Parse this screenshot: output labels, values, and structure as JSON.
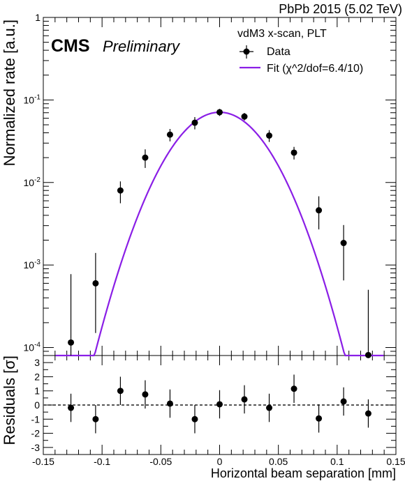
{
  "header": {
    "energy_label": "PbPb 2015 (5.02 TeV)",
    "cms_label": "CMS",
    "prelim_label": "Preliminary"
  },
  "legend": {
    "header": "vdM3 x-scan,  PLT",
    "data_label": "Data",
    "fit_label": "Fit (χ^2/dof=6.4/10)"
  },
  "colors": {
    "fit": "#8a1ee6",
    "data": "#000000",
    "zero_line": "#555555"
  },
  "chart_data": [
    {
      "type": "scatter",
      "title": "",
      "xlabel": "Horizontal beam separation [mm]",
      "ylabel": "Normalized rate [a.u.]",
      "yscale": "log",
      "xlim": [
        -0.15,
        0.15
      ],
      "ylim": [
        8e-05,
        1
      ],
      "x_ticks": [
        "-0.15",
        "-0.1",
        "-0.05",
        "0",
        "0.05",
        "0.1",
        "0.15"
      ],
      "y_ticks": [
        "10^-4",
        "10^-3",
        "10^-2",
        "10^-1",
        "1"
      ],
      "series": [
        {
          "name": "Data",
          "x": [
            -0.1265,
            -0.1055,
            -0.0844,
            -0.0633,
            -0.0422,
            -0.0211,
            0.0,
            0.0211,
            0.0422,
            0.0633,
            0.0844,
            0.1055,
            0.1265
          ],
          "y": [
            0.000115,
            0.0006,
            0.008,
            0.02,
            0.038,
            0.053,
            0.071,
            0.063,
            0.037,
            0.023,
            0.0046,
            0.00185,
            8.1e-05
          ],
          "y_err_low": [
            3.5e-05,
            0.00045,
            0.0024,
            0.005,
            0.0065,
            0.009,
            0.007,
            0.0065,
            0.006,
            0.004,
            0.0019,
            0.0012,
            1e-06
          ],
          "y_err_high": [
            0.00066,
            0.0008,
            0.0023,
            0.0052,
            0.0065,
            0.009,
            0.007,
            0.0065,
            0.006,
            0.004,
            0.0022,
            0.0012,
            0.00042
          ]
        },
        {
          "name": "Fit",
          "model": "gaussian",
          "amplitude": 0.071,
          "mean": 0.0,
          "sigma": 0.0289,
          "x_range": [
            -0.1395,
            0.1395
          ]
        }
      ]
    },
    {
      "type": "scatter",
      "title": "",
      "xlabel": "Horizontal beam separation [mm]",
      "ylabel": "Residuals [σ]",
      "xlim": [
        -0.15,
        0.15
      ],
      "ylim": [
        -3.5,
        3.5
      ],
      "x_ticks": [
        "-0.15",
        "-0.1",
        "-0.05",
        "0",
        "0.05",
        "0.1",
        "0.15"
      ],
      "y_ticks": [
        "-3",
        "-2",
        "-1",
        "0",
        "1",
        "2",
        "3"
      ],
      "series": [
        {
          "name": "Residuals",
          "x": [
            -0.1265,
            -0.1055,
            -0.0844,
            -0.0633,
            -0.0422,
            -0.0211,
            0.0,
            0.0211,
            0.0422,
            0.0633,
            0.0844,
            0.1055,
            0.1265
          ],
          "y": [
            -0.2,
            -1.0,
            1.0,
            0.75,
            0.1,
            -1.0,
            0.05,
            0.4,
            -0.2,
            1.15,
            -0.95,
            0.25,
            -0.6
          ],
          "y_err": [
            1,
            1,
            1,
            1,
            1,
            1,
            1,
            1,
            1,
            1,
            1,
            1,
            1
          ]
        }
      ]
    }
  ]
}
